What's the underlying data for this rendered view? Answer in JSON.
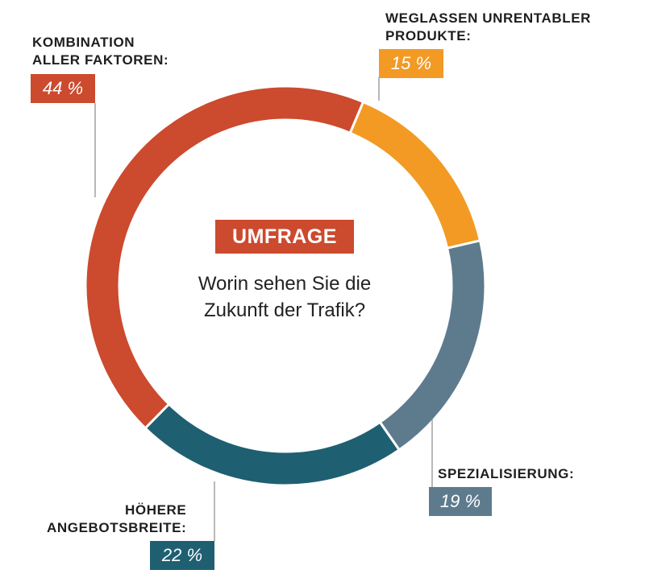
{
  "colors": {
    "kombination": "#cc4a2e",
    "weglassen": "#f29a23",
    "spezialisierung": "#5e7b8e",
    "angebot": "#1f5f72",
    "badge": "#cc4a2e",
    "leader": "#8a8a8a"
  },
  "center": {
    "badge": "UMFRAGE",
    "question_line1": "Worin sehen Sie die",
    "question_line2": "Zukunft der Trafik?"
  },
  "chart_data": {
    "type": "pie",
    "title": "",
    "values": [
      15,
      19,
      22,
      44
    ],
    "slices": [
      {
        "key": "weglassen",
        "label_line1": "WEGLASSEN UNRENTABLER",
        "label_line2": "PRODUKTE:",
        "value": 15,
        "value_label": "15 %",
        "color": "#f29a23"
      },
      {
        "key": "spezialisierung",
        "label_line1": "SPEZIALISIERUNG:",
        "label_line2": "",
        "value": 19,
        "value_label": "19 %",
        "color": "#5e7b8e"
      },
      {
        "key": "angebot",
        "label_line1": "HÖHERE",
        "label_line2": "ANGEBOTSBREITE:",
        "value": 22,
        "value_label": "22 %",
        "color": "#1f5f72"
      },
      {
        "key": "kombination",
        "label_line1": "KOMBINATION",
        "label_line2": "ALLER FAKTOREN:",
        "value": 44,
        "value_label": "44 %",
        "color": "#cc4a2e"
      }
    ],
    "donut": true,
    "legend": "none"
  }
}
